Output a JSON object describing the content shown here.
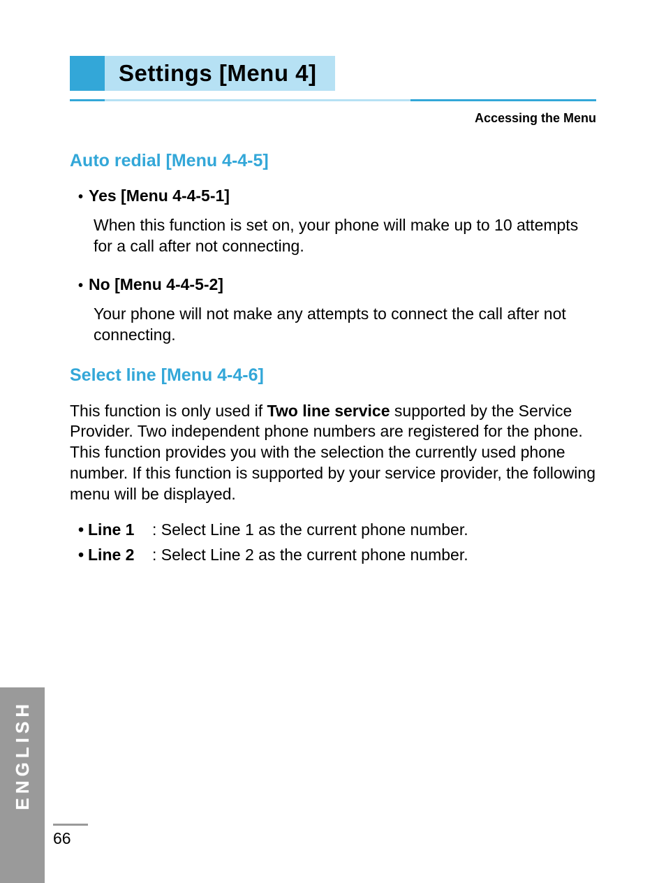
{
  "colors": {
    "accent": "#33a7d8",
    "accent_light": "#b6e1f4",
    "side_tab": "#9a9a9a",
    "text": "#000000",
    "background": "#ffffff"
  },
  "typography": {
    "title_fontsize": 33,
    "section_heading_fontsize": 25,
    "body_fontsize": 23,
    "subtitle_fontsize": 18,
    "sidetab_fontsize": 26
  },
  "header": {
    "title": "Settings [Menu 4]",
    "subtitle": "Accessing the Menu"
  },
  "sections": {
    "auto_redial": {
      "heading": "Auto redial [Menu 4-4-5]",
      "yes": {
        "label": "Yes [Menu 4-4-5-1]",
        "text": "When this function is set on, your phone will make up to 10 attempts for a call after not connecting."
      },
      "no": {
        "label": "No [Menu 4-4-5-2]",
        "text": "Your phone will not make any attempts to connect the call after not connecting."
      }
    },
    "select_line": {
      "heading": "Select line [Menu 4-4-6]",
      "intro_pre": "This function is only used if ",
      "intro_bold": "Two line service",
      "intro_post": " supported by the Service Provider. Two independent phone numbers are registered for the phone. This function provides you with the selection the currently used phone number. If this function is supported by your service provider, the following menu will be displayed.",
      "line1": {
        "label": "Line 1",
        "desc": ": Select Line 1 as the current phone number."
      },
      "line2": {
        "label": "Line 2",
        "desc": ": Select Line 2 as the current phone number."
      }
    }
  },
  "footer": {
    "side_label": "ENGLISH",
    "page_number": "66"
  }
}
